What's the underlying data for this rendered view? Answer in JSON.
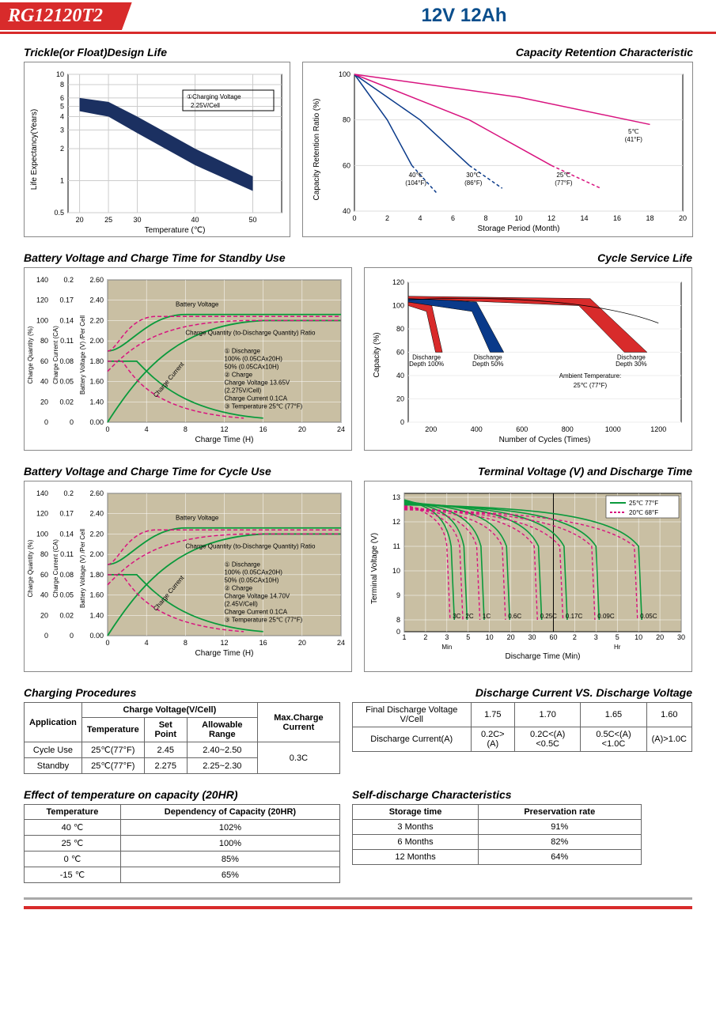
{
  "header": {
    "model": "RG12120T2",
    "spec": "12V 12Ah"
  },
  "charts": {
    "trickle": {
      "title": "Trickle(or Float)Design Life",
      "xlabel": "Temperature (℃)",
      "ylabel": "Life Expectancy(Years)",
      "xlim": [
        18,
        55
      ],
      "ylim_ticks": [
        0.5,
        1,
        2,
        3,
        4,
        5,
        6,
        8,
        10
      ],
      "xticks": [
        20,
        25,
        30,
        40,
        50
      ],
      "note": "①Charging Voltage 2.25V/Cell",
      "band_color": "#1b3061",
      "upper": [
        [
          20,
          6
        ],
        [
          25,
          5.5
        ],
        [
          30,
          4
        ],
        [
          40,
          2
        ],
        [
          50,
          1.1
        ]
      ],
      "lower": [
        [
          20,
          4.5
        ],
        [
          25,
          4
        ],
        [
          30,
          2.8
        ],
        [
          40,
          1.4
        ],
        [
          50,
          0.8
        ]
      ]
    },
    "retention": {
      "title": "Capacity Retention  Characteristic",
      "xlabel": "Storage Period (Month)",
      "ylabel": "Capacity Retention Ratio (%)",
      "xlim": [
        0,
        20
      ],
      "ylim": [
        40,
        100
      ],
      "xticks": [
        0,
        2,
        4,
        6,
        8,
        10,
        12,
        14,
        16,
        18,
        20
      ],
      "yticks": [
        40,
        60,
        80,
        100
      ],
      "curves": [
        {
          "label": "40℃ (104°F)",
          "color": "#0a3a8a",
          "dash": false,
          "pts": [
            [
              0,
              100
            ],
            [
              2,
              80
            ],
            [
              3.5,
              60
            ]
          ],
          "ext": [
            [
              3.5,
              60
            ],
            [
              5,
              48
            ]
          ]
        },
        {
          "label": "30℃ (86°F)",
          "color": "#0a3a8a",
          "dash": false,
          "pts": [
            [
              0,
              100
            ],
            [
              4,
              80
            ],
            [
              7,
              60
            ]
          ],
          "ext": [
            [
              7,
              60
            ],
            [
              9,
              50
            ]
          ]
        },
        {
          "label": "25℃ (77°F)",
          "color": "#d8137f",
          "dash": false,
          "pts": [
            [
              0,
              100
            ],
            [
              7,
              80
            ],
            [
              12,
              60
            ]
          ],
          "ext": [
            [
              12,
              60
            ],
            [
              15,
              50
            ]
          ]
        },
        {
          "label": "5℃ (41°F)",
          "color": "#d8137f",
          "dash": false,
          "pts": [
            [
              0,
              100
            ],
            [
              10,
              90
            ],
            [
              18,
              78
            ]
          ]
        }
      ]
    },
    "standby": {
      "title": "Battery Voltage and Charge Time for Standby Use",
      "xlabel": "Charge Time (H)",
      "y1": "Charge Quantity (%)",
      "y2": "Charge Current (CA)",
      "y3": "Battery Voltage (V) /Per Cell",
      "xlim": [
        0,
        24
      ],
      "xticks": [
        0,
        4,
        8,
        12,
        16,
        20,
        24
      ],
      "y1ticks": [
        0,
        20,
        40,
        60,
        80,
        100,
        120,
        140
      ],
      "y2ticks": [
        0,
        0.02,
        0.05,
        0.08,
        0.11,
        0.14,
        0.17,
        0.2
      ],
      "y3ticks": [
        0,
        1.4,
        1.6,
        1.8,
        2.0,
        2.2,
        2.4,
        2.6
      ],
      "notes": [
        "① Discharge",
        "100% (0.05CAx20H)",
        "50% (0.05CAx10H)",
        "② Charge",
        "Charge Voltage 13.65V",
        "(2.275V/Cell)",
        "Charge Current 0.1CA",
        "③ Temperature 25℃ (77°F)"
      ],
      "bg": "#c9bfa3",
      "green": "#0a9a3c",
      "pink": "#d8137f"
    },
    "cycleLife": {
      "title": "Cycle Service Life",
      "xlabel": "Number of Cycles (Times)",
      "ylabel": "Capacity (%)",
      "xlim": [
        100,
        1300
      ],
      "ylim": [
        0,
        120
      ],
      "xticks": [
        200,
        400,
        600,
        800,
        1000,
        1200
      ],
      "yticks": [
        0,
        20,
        40,
        60,
        80,
        100,
        120
      ],
      "bands": [
        {
          "label": "Discharge Depth 100%",
          "color": "#d82b2b",
          "upper": [
            [
              100,
              107
            ],
            [
              200,
              103
            ],
            [
              250,
              60
            ]
          ],
          "lower": [
            [
              100,
              100
            ],
            [
              180,
              95
            ],
            [
              220,
              60
            ]
          ]
        },
        {
          "label": "Discharge Depth 50%",
          "color": "#0a3a8a",
          "upper": [
            [
              100,
              107
            ],
            [
              400,
              103
            ],
            [
              520,
              60
            ]
          ],
          "lower": [
            [
              100,
              103
            ],
            [
              380,
              95
            ],
            [
              460,
              60
            ]
          ]
        },
        {
          "label": "Discharge Depth 30%",
          "color": "#d82b2b",
          "upper": [
            [
              100,
              108
            ],
            [
              900,
              106
            ],
            [
              1150,
              60
            ]
          ],
          "lower": [
            [
              100,
              106
            ],
            [
              850,
              100
            ],
            [
              1050,
              60
            ]
          ]
        }
      ],
      "ambient": "Ambient Temperature: 25℃ (77°F)"
    },
    "cycle": {
      "title": "Battery Voltage and Charge Time for Cycle Use",
      "notes": [
        "① Discharge",
        "100% (0.05CAx20H)",
        "50% (0.05CAx10H)",
        "② Charge",
        "Charge Voltage 14.70V",
        "(2.45V/Cell)",
        "Charge Current 0.1CA",
        "③ Temperature 25℃ (77°F)"
      ]
    },
    "terminal": {
      "title": "Terminal Voltage (V) and Discharge Time",
      "xlabel": "Discharge Time (Min)",
      "ylabel": "Terminal Voltage (V)",
      "legend": [
        "25℃ 77°F",
        "20℃ 68°F"
      ],
      "green": "#0a9a3c",
      "pink": "#d8137f",
      "yticks": [
        0,
        8,
        9,
        10,
        11,
        12,
        13
      ],
      "bg": "#c9bfa3",
      "xticks_min": [
        "1",
        "2",
        "3",
        "5",
        "10",
        "20",
        "30",
        "60"
      ],
      "xticks_hr": [
        "2",
        "3",
        "5",
        "10",
        "20",
        "30"
      ],
      "xmarks": [
        "Min",
        "Hr"
      ],
      "rates": [
        "3C",
        "2C",
        "1C",
        "0.6C",
        "0.25C",
        "0.17C",
        "0.09C",
        "0.05C"
      ],
      "curves25": [
        [
          [
            0,
            12.7
          ],
          [
            10,
            12.5
          ],
          [
            18,
            12.2
          ],
          [
            22,
            10
          ],
          [
            23,
            8
          ]
        ],
        [
          [
            0,
            12.8
          ],
          [
            15,
            12.5
          ],
          [
            24,
            12
          ],
          [
            28,
            10
          ],
          [
            29,
            8
          ]
        ],
        [
          [
            0,
            12.9
          ],
          [
            25,
            12.5
          ],
          [
            35,
            12
          ],
          [
            40,
            10
          ],
          [
            41,
            8
          ]
        ],
        [
          [
            0,
            13.0
          ],
          [
            40,
            12.6
          ],
          [
            55,
            12.2
          ],
          [
            62,
            10
          ],
          [
            64,
            8
          ]
        ],
        [
          [
            0,
            13.0
          ],
          [
            55,
            12.7
          ],
          [
            72,
            12.3
          ],
          [
            80,
            10.5
          ],
          [
            82,
            8
          ]
        ],
        [
          [
            0,
            13.1
          ],
          [
            65,
            12.8
          ],
          [
            80,
            12.4
          ],
          [
            88,
            11
          ],
          [
            90,
            8
          ]
        ],
        [
          [
            0,
            13.1
          ],
          [
            72,
            12.9
          ],
          [
            86,
            12.5
          ],
          [
            94,
            11.5
          ],
          [
            96,
            8
          ]
        ],
        [
          [
            0,
            13.1
          ],
          [
            78,
            13.0
          ],
          [
            92,
            12.7
          ],
          [
            99,
            12
          ],
          [
            100,
            8
          ]
        ]
      ]
    }
  },
  "charging_proc": {
    "title": "Charging Procedures",
    "headers": [
      "Application",
      "Charge Voltage(V/Cell)",
      "Max.Charge Current"
    ],
    "sub": [
      "Temperature",
      "Set Point",
      "Allowable Range"
    ],
    "rows": [
      [
        "Cycle Use",
        "25℃(77°F)",
        "2.45",
        "2.40~2.50",
        "0.3C"
      ],
      [
        "Standby",
        "25℃(77°F)",
        "2.275",
        "2.25~2.30",
        ""
      ]
    ]
  },
  "discharge_vs": {
    "title": "Discharge Current VS. Discharge Voltage",
    "headers": [
      "Final Discharge Voltage V/Cell",
      "1.75",
      "1.70",
      "1.65",
      "1.60"
    ],
    "row2": [
      "Discharge Current(A)",
      "0.2C>(A)",
      "0.2C<(A)<0.5C",
      "0.5C<(A)<1.0C",
      "(A)>1.0C"
    ]
  },
  "temp_effect": {
    "title": "Effect of temperature on capacity (20HR)",
    "headers": [
      "Temperature",
      "Dependency of Capacity (20HR)"
    ],
    "rows": [
      [
        "40 ℃",
        "102%"
      ],
      [
        "25 ℃",
        "100%"
      ],
      [
        "0 ℃",
        "85%"
      ],
      [
        "-15 ℃",
        "65%"
      ]
    ]
  },
  "self_discharge": {
    "title": "Self-discharge Characteristics",
    "headers": [
      "Storage time",
      "Preservation rate"
    ],
    "rows": [
      [
        "3 Months",
        "91%"
      ],
      [
        "6 Months",
        "82%"
      ],
      [
        "12 Months",
        "64%"
      ]
    ]
  }
}
